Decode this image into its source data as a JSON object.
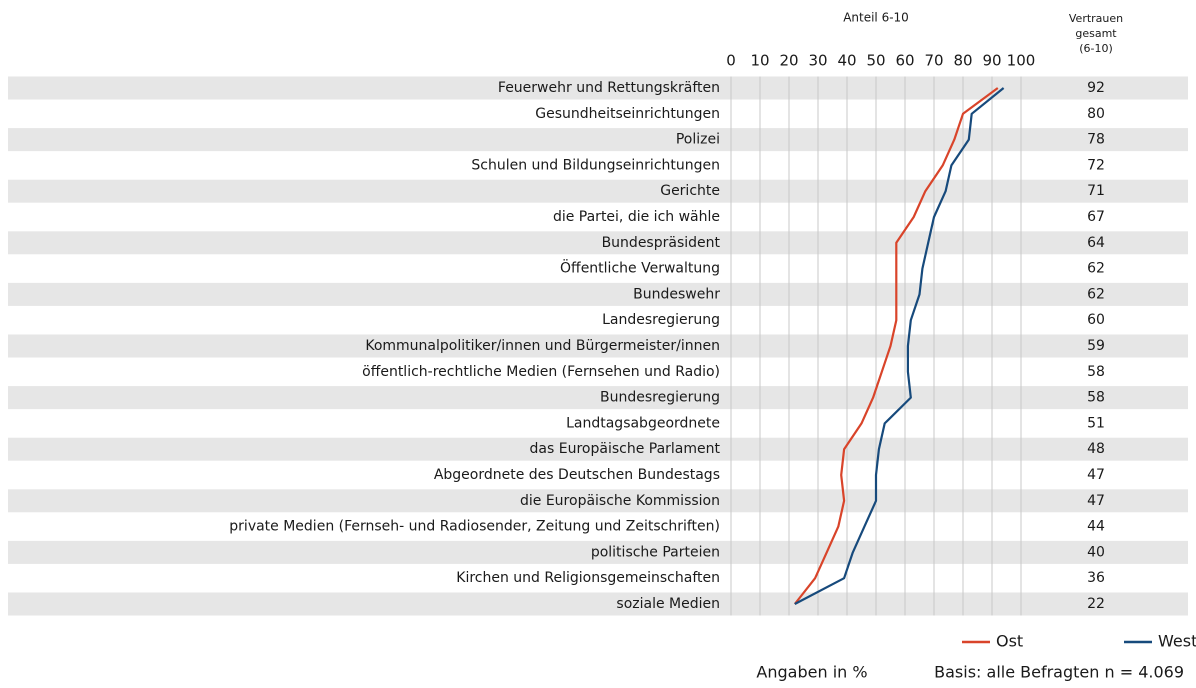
{
  "chart_data": {
    "type": "line",
    "orientation": "horizontal",
    "axis_title": "Anteil 6-10",
    "totals_header": [
      "Vertrauen",
      "gesamt",
      "(6-10)"
    ],
    "categories": [
      "Feuerwehr und Rettungskräften",
      "Gesundheitseinrichtungen",
      "Polizei",
      "Schulen und Bildungseinrichtungen",
      "Gerichte",
      "die Partei, die ich wähle",
      "Bundespräsident",
      "Öffentliche Verwaltung",
      "Bundeswehr",
      "Landesregierung",
      "Kommunalpolitiker/innen und Bürgermeister/innen",
      "öffentlich-rechtliche Medien (Fernsehen und Radio)",
      "Bundesregierung",
      "Landtagsabgeordnete",
      "das Europäische Parlament",
      "Abgeordnete des Deutschen Bundestags",
      "die Europäische Kommission",
      "private Medien (Fernseh- und Radiosender, Zeitung und Zeitschriften)",
      "politische Parteien",
      "Kirchen und Religionsgemeinschaften",
      "soziale Medien"
    ],
    "series": [
      {
        "name": "Ost",
        "color": "#d9442a",
        "values": [
          92,
          80,
          77,
          73,
          67,
          63,
          57,
          57,
          57,
          57,
          55,
          52,
          49,
          45,
          39,
          38,
          39,
          37,
          33,
          29,
          22
        ]
      },
      {
        "name": "West",
        "color": "#174a7c",
        "values": [
          94,
          83,
          82,
          76,
          74,
          70,
          68,
          66,
          65,
          62,
          61,
          61,
          62,
          53,
          51,
          50,
          50,
          46,
          42,
          39,
          22
        ]
      }
    ],
    "totals": [
      92,
      80,
      78,
      72,
      71,
      67,
      64,
      62,
      62,
      60,
      59,
      58,
      58,
      51,
      48,
      47,
      47,
      44,
      40,
      36,
      22
    ],
    "xlim": [
      0,
      100
    ],
    "xticks": [
      0,
      10,
      20,
      30,
      40,
      50,
      60,
      70,
      80,
      90,
      100
    ],
    "grid": true,
    "legend": "bottom-right",
    "notes": [
      "Angaben in %",
      "Basis: alle Befragten n = 4.069"
    ]
  }
}
